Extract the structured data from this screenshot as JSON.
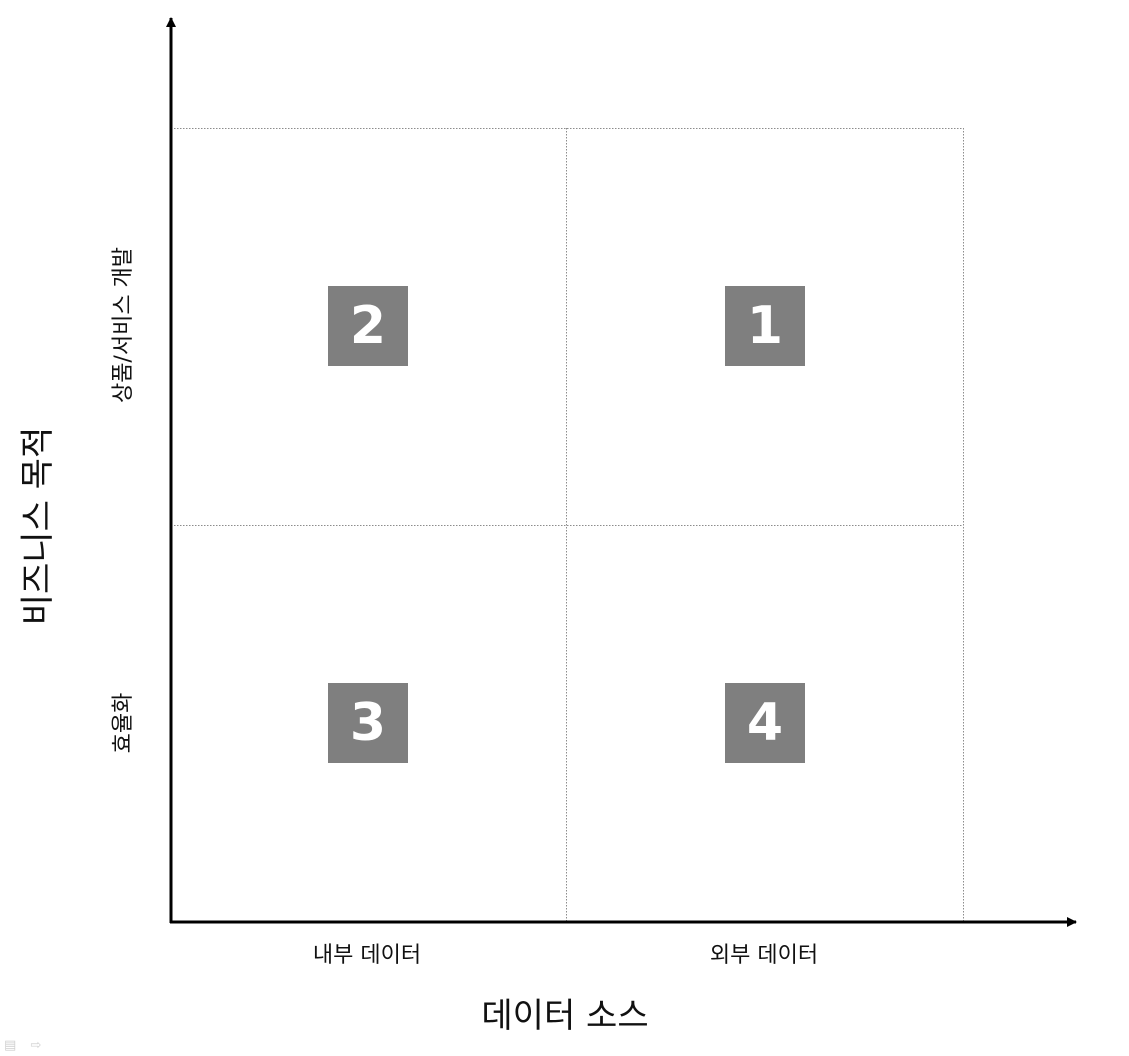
{
  "x_axis": {
    "title": "데이터 소스",
    "categories": [
      "내부 데이터",
      "외부 데이터"
    ]
  },
  "y_axis": {
    "title": "비즈니스 목적",
    "categories": [
      "상품/서비스 개발",
      "효율화"
    ]
  },
  "quadrants": {
    "top_left": "2",
    "top_right": "1",
    "bottom_left": "3",
    "bottom_right": "4"
  },
  "colors": {
    "badge": "#7f7f7f",
    "badge_text": "#ffffff",
    "axis": "#000000",
    "grid": "#8c8c8c"
  },
  "icons": {
    "slide_nav": [
      "menu-icon",
      "arrow-right-icon"
    ]
  }
}
